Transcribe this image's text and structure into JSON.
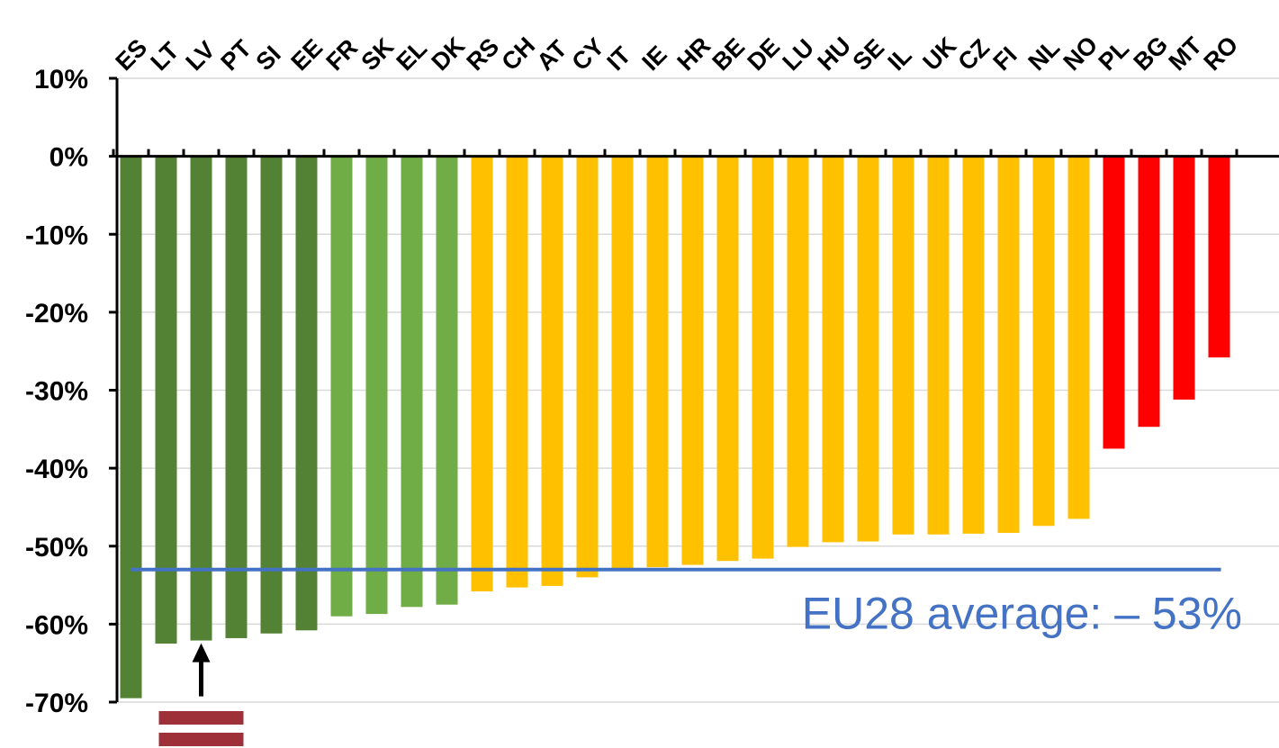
{
  "chart_data": {
    "type": "bar",
    "categories": [
      "ES",
      "LT",
      "LV",
      "PT",
      "SI",
      "EE",
      "FR",
      "SK",
      "EL",
      "DK",
      "RS",
      "CH",
      "AT",
      "CY",
      "IT",
      "IE",
      "HR",
      "BE",
      "DE",
      "LU",
      "HU",
      "SE",
      "IL",
      "UK",
      "CZ",
      "FI",
      "NL",
      "NO",
      "PL",
      "BG",
      "MT",
      "RO"
    ],
    "values": [
      -69.5,
      -62.5,
      -62.1,
      -61.8,
      -61.2,
      -60.8,
      -59.0,
      -58.7,
      -57.8,
      -57.5,
      -55.8,
      -55.3,
      -55.1,
      -54.0,
      -52.8,
      -52.7,
      -52.4,
      -51.9,
      -51.6,
      -50.1,
      -49.5,
      -49.4,
      -48.5,
      -48.5,
      -48.4,
      -48.3,
      -47.4,
      -46.5,
      -37.5,
      -34.7,
      -31.2,
      -25.8
    ],
    "color_groups": [
      "dark-green",
      "dark-green",
      "dark-green",
      "dark-green",
      "dark-green",
      "dark-green",
      "light-green",
      "light-green",
      "light-green",
      "light-green",
      "yellow",
      "yellow",
      "yellow",
      "yellow",
      "yellow",
      "yellow",
      "yellow",
      "yellow",
      "yellow",
      "yellow",
      "yellow",
      "yellow",
      "yellow",
      "yellow",
      "yellow",
      "yellow",
      "yellow",
      "yellow",
      "red",
      "red",
      "red",
      "red"
    ],
    "colors": {
      "dark-green": "#548235",
      "light-green": "#70AD47",
      "yellow": "#FFC000",
      "red": "#FF0000",
      "average": "#4472C4",
      "gridline": "#D9D9D9",
      "arrow": "#000000",
      "flag": "#9E3039"
    },
    "ylim": [
      -70,
      10
    ],
    "yticks": [
      10,
      0,
      -10,
      -20,
      -30,
      -40,
      -50,
      -60,
      -70
    ],
    "ytick_labels": [
      "10%",
      "0%",
      "-10%",
      "-20%",
      "-30%",
      "-40%",
      "-50%",
      "-60%",
      "-70%"
    ],
    "grid": true,
    "average": {
      "value": -53,
      "label": "EU28 average: – 53%"
    },
    "highlight": {
      "category": "LV",
      "marker": "arrow-icon",
      "flag": "latvia-flag-icon"
    },
    "title": "",
    "xlabel": "",
    "ylabel": ""
  }
}
